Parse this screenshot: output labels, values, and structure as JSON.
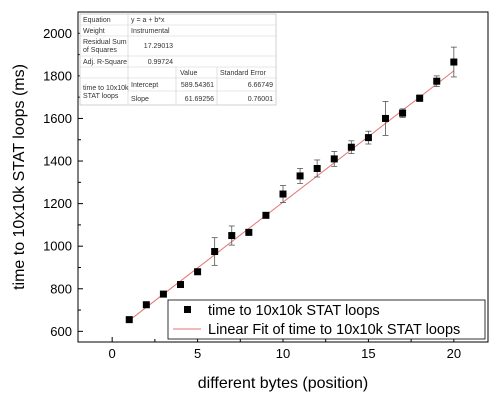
{
  "chart_data": {
    "type": "scatter",
    "xlabel": "different bytes (position)",
    "ylabel": "time to 10x10k STAT loops (ms)",
    "xlim": [
      -2,
      22
    ],
    "ylim": [
      550,
      2100
    ],
    "x_ticks": [
      0,
      5,
      10,
      15,
      20
    ],
    "y_ticks": [
      600,
      800,
      1000,
      1200,
      1400,
      1600,
      1800,
      2000
    ],
    "grid": false,
    "legend_position": "bottom-right",
    "series": [
      {
        "name": "time to 10x10k STAT loops",
        "kind": "scatter",
        "marker": "square",
        "color": "#000000",
        "x": [
          1,
          2,
          3,
          4,
          5,
          6,
          7,
          8,
          9,
          10,
          11,
          12,
          13,
          14,
          15,
          16,
          17,
          18,
          19,
          20
        ],
        "y": [
          655,
          725,
          775,
          820,
          880,
          975,
          1050,
          1065,
          1145,
          1245,
          1330,
          1365,
          1410,
          1465,
          1510,
          1600,
          1625,
          1695,
          1775,
          1865
        ],
        "error": [
          12,
          10,
          10,
          10,
          12,
          65,
          45,
          12,
          12,
          40,
          35,
          40,
          35,
          30,
          30,
          80,
          20,
          15,
          25,
          70
        ]
      },
      {
        "name": "Linear Fit of time to 10x10k STAT loops",
        "kind": "line",
        "color": "#e57373",
        "intercept": 589.54361,
        "slope": 61.69256,
        "x_range": [
          1,
          20
        ]
      }
    ],
    "stats_table": {
      "equation_label": "Equation",
      "equation_value": "y = a + b*x",
      "weight_label": "Weight",
      "weight_value": "Instrumental",
      "rss_label_line1": "Residual Sum",
      "rss_label_line2": "of Squares",
      "rss_value": "17.29013",
      "adj_r_label": "Adj. R-Square",
      "adj_r_value": "0.99724",
      "col_value": "Value",
      "col_error": "Standard Error",
      "row_label_line1": "time to 10x10k",
      "row_label_line2": "STAT loops",
      "intercept_label": "Intercept",
      "intercept_value": "589.54361",
      "intercept_error": "6.66749",
      "slope_label": "Slope",
      "slope_value": "61.69256",
      "slope_error": "0.76001"
    }
  }
}
